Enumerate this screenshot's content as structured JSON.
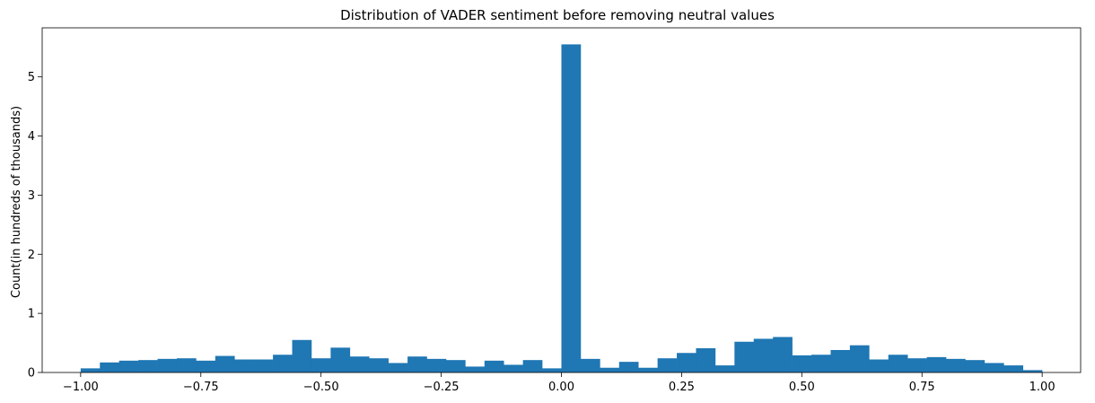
{
  "chart_data": {
    "type": "bar",
    "title": "Distribution of VADER sentiment before removing neutral values",
    "xlabel": "",
    "ylabel": "Count(in hundreds of thousands)",
    "xlim": [
      -1.08,
      1.08
    ],
    "ylim": [
      0,
      5.83
    ],
    "xticks": [
      -1.0,
      -0.75,
      -0.5,
      -0.25,
      0.0,
      0.25,
      0.5,
      0.75,
      1.0
    ],
    "xtick_labels": [
      "−1.00",
      "−0.75",
      "−0.50",
      "−0.25",
      "0.00",
      "0.25",
      "0.50",
      "0.75",
      "1.00"
    ],
    "yticks": [
      0,
      1,
      2,
      3,
      4,
      5
    ],
    "ytick_labels": [
      "0",
      "1",
      "2",
      "3",
      "4",
      "5"
    ],
    "grid": false,
    "color": "#1f77b4",
    "bin_start": -1.0,
    "bin_width": 0.04,
    "values": [
      0.07,
      0.17,
      0.2,
      0.21,
      0.23,
      0.24,
      0.2,
      0.28,
      0.22,
      0.22,
      0.3,
      0.55,
      0.24,
      0.42,
      0.27,
      0.24,
      0.16,
      0.27,
      0.23,
      0.21,
      0.1,
      0.2,
      0.13,
      0.21,
      0.07,
      5.55,
      0.23,
      0.08,
      0.18,
      0.08,
      0.24,
      0.33,
      0.41,
      0.12,
      0.52,
      0.57,
      0.6,
      0.29,
      0.3,
      0.38,
      0.46,
      0.22,
      0.3,
      0.24,
      0.26,
      0.23,
      0.21,
      0.16,
      0.12,
      0.04
    ]
  }
}
